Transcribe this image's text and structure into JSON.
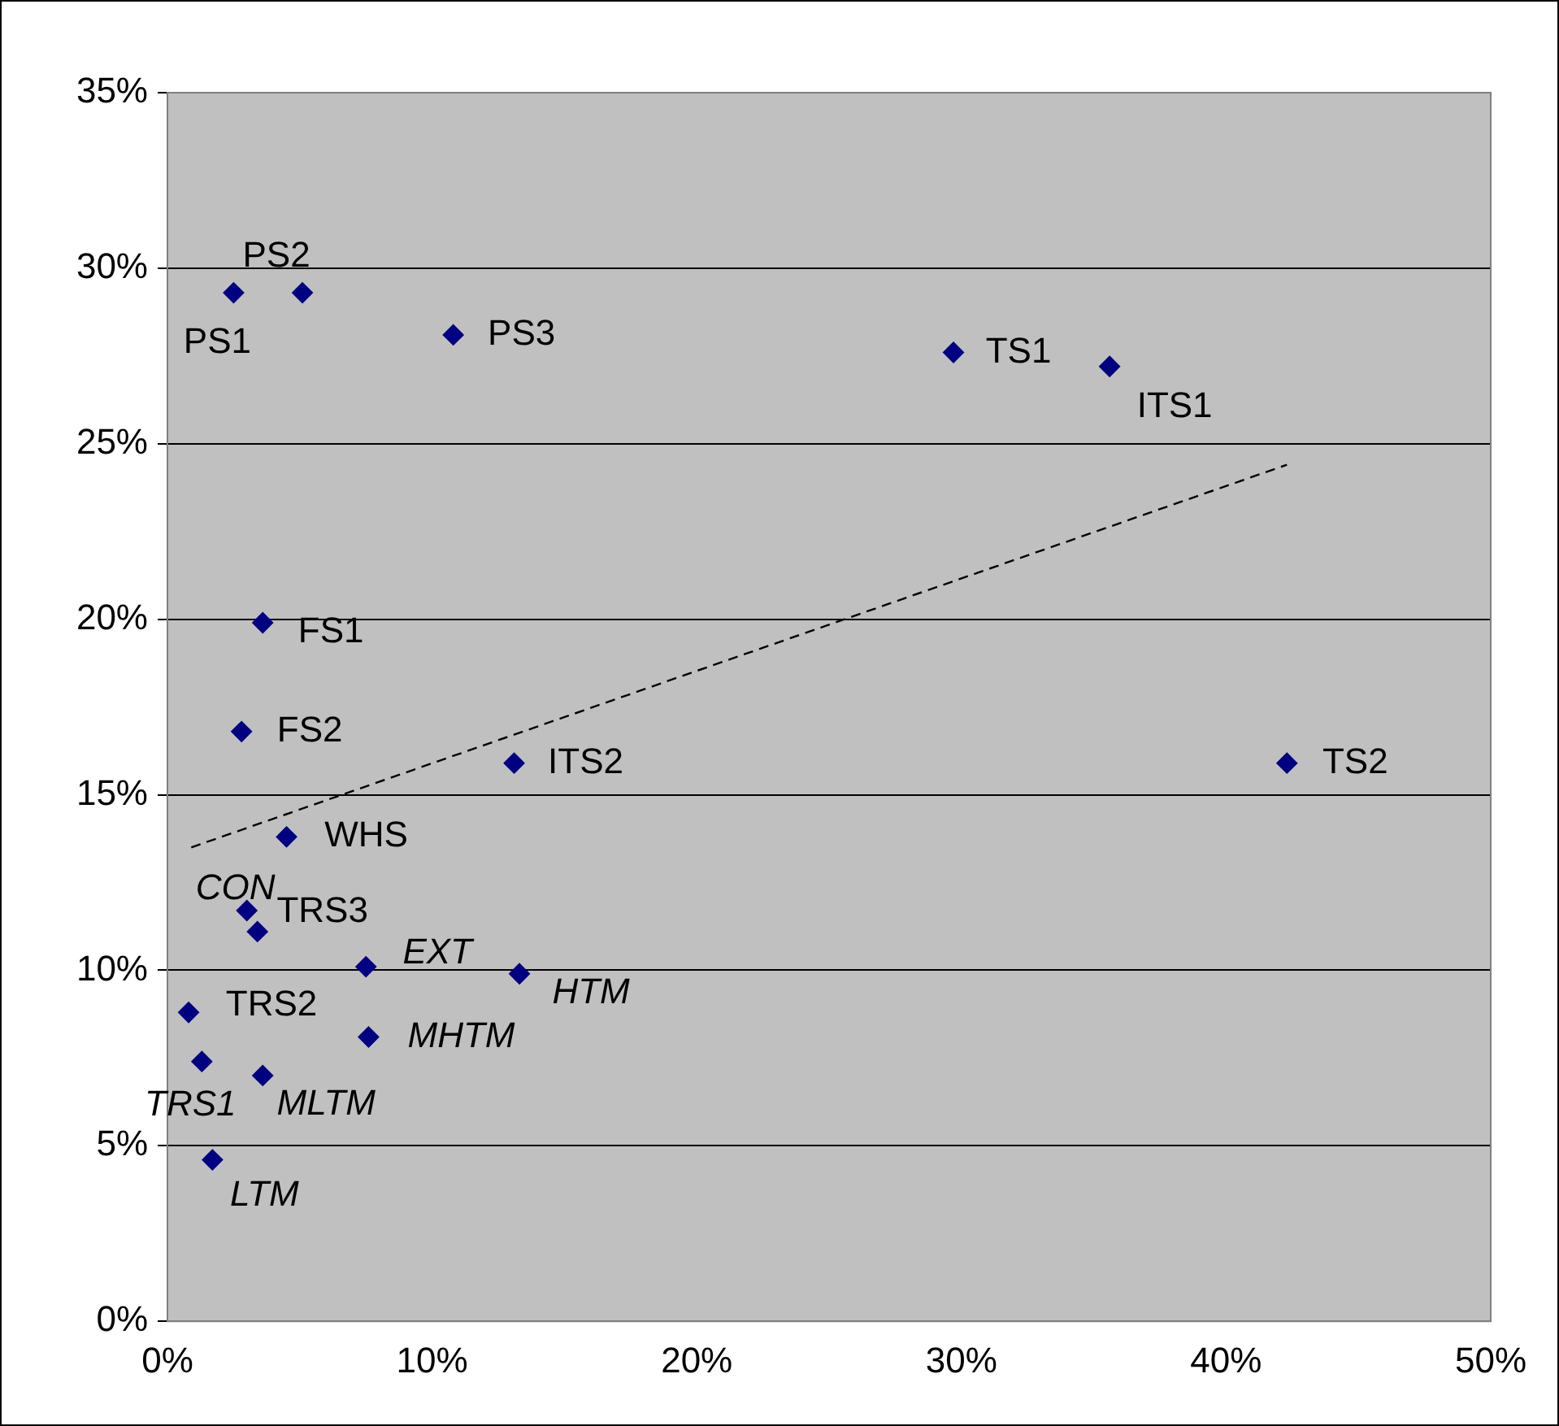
{
  "chart_data": {
    "type": "scatter",
    "marker": "diamond",
    "grid": "y",
    "legend": false,
    "xlim": [
      0,
      50
    ],
    "xticks": [
      {
        "value": 0,
        "label": "0%"
      },
      {
        "value": 10,
        "label": "10%"
      },
      {
        "value": 20,
        "label": "20%"
      },
      {
        "value": 30,
        "label": "30%"
      },
      {
        "value": 40,
        "label": "40%"
      },
      {
        "value": 50,
        "label": "50%"
      }
    ],
    "ylim": [
      0,
      35
    ],
    "yticks": [
      {
        "value": 0,
        "label": "0%"
      },
      {
        "value": 5,
        "label": "5%"
      },
      {
        "value": 10,
        "label": "10%"
      },
      {
        "value": 15,
        "label": "15%"
      },
      {
        "value": 20,
        "label": "20%"
      },
      {
        "value": 25,
        "label": "25%"
      },
      {
        "value": 30,
        "label": "30%"
      },
      {
        "value": 35,
        "label": "35%"
      }
    ],
    "series": [
      {
        "color": "#000080",
        "x": [
          2.5,
          5.1,
          10.8,
          29.7,
          35.6,
          3.6,
          2.8,
          13.1,
          42.3,
          4.5,
          3.0,
          3.4,
          7.5,
          13.3,
          0.8,
          7.6,
          1.3,
          3.6,
          1.7
        ],
        "values": [
          29.3,
          29.3,
          28.1,
          27.6,
          27.2,
          19.9,
          16.8,
          15.9,
          15.9,
          13.8,
          11.7,
          11.1,
          10.1,
          9.9,
          8.8,
          8.1,
          7.4,
          7.0,
          4.6
        ]
      },
      {
        "type": "line",
        "color": "#000000",
        "line_style": "dashed",
        "marker": "none",
        "x": [
          0.9,
          42.3
        ],
        "values": [
          13.5,
          24.4
        ]
      }
    ],
    "annotations": [
      {
        "text": "PS1",
        "x": 2.5,
        "y": 29.3
      },
      {
        "text": "PS2",
        "x": 5.1,
        "y": 29.3
      },
      {
        "text": "PS3",
        "x": 10.8,
        "y": 28.1
      },
      {
        "text": "TS1",
        "x": 29.7,
        "y": 27.6
      },
      {
        "text": "ITS1",
        "x": 35.6,
        "y": 27.2
      },
      {
        "text": "FS1",
        "x": 3.6,
        "y": 19.9
      },
      {
        "text": "FS2",
        "x": 2.8,
        "y": 16.8
      },
      {
        "text": "ITS2",
        "x": 13.1,
        "y": 15.9
      },
      {
        "text": "TS2",
        "x": 42.3,
        "y": 15.9
      },
      {
        "text": "WHS",
        "x": 4.5,
        "y": 13.8
      },
      {
        "text": "CON",
        "x": 3.0,
        "y": 11.7
      },
      {
        "text": "TRS3",
        "x": 3.4,
        "y": 11.1
      },
      {
        "text": "EXT",
        "x": 7.5,
        "y": 10.1
      },
      {
        "text": "HTM",
        "x": 13.3,
        "y": 9.9
      },
      {
        "text": "TRS2",
        "x": 0.8,
        "y": 8.8
      },
      {
        "text": "MHTM",
        "x": 7.6,
        "y": 8.1
      },
      {
        "text": "TRS1",
        "x": 1.3,
        "y": 7.4
      },
      {
        "text": "MLTM",
        "x": 3.6,
        "y": 7.0
      },
      {
        "text": "LTM",
        "x": 1.7,
        "y": 4.6
      }
    ]
  }
}
